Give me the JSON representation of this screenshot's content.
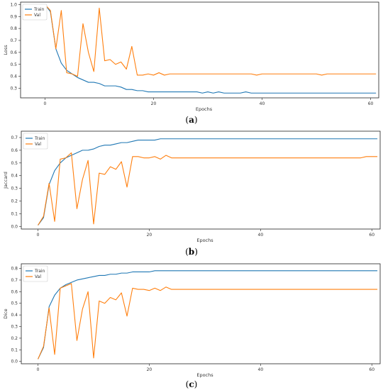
{
  "colors": {
    "train": "#1f77b4",
    "val": "#ff7f0e"
  },
  "chart_data": [
    {
      "type": "line",
      "caption": {
        "open": "(",
        "letter": "a",
        "close": ")"
      },
      "xlabel": "Epochs",
      "ylabel": "Loss",
      "xlim": [
        -4.5,
        61.5
      ],
      "ylim": [
        0.22,
        1.02
      ],
      "xticks": [
        0,
        20,
        40,
        60
      ],
      "yticks": [
        0.3,
        0.4,
        0.5,
        0.6,
        0.7,
        0.8,
        0.9,
        1.0
      ],
      "ytick_labels": [
        "0.3",
        "0.4",
        "0.5",
        "0.6",
        "0.7",
        "0.8",
        "0.9",
        "1.0"
      ],
      "legend": {
        "position": "top-left"
      },
      "series": [
        {
          "name": "Train",
          "color": "#1f77b4",
          "values": [
            1.0,
            0.94,
            0.63,
            0.51,
            0.45,
            0.42,
            0.39,
            0.37,
            0.35,
            0.35,
            0.34,
            0.32,
            0.32,
            0.32,
            0.31,
            0.29,
            0.29,
            0.28,
            0.28,
            0.27,
            0.27,
            0.27,
            0.27,
            0.27,
            0.27,
            0.27,
            0.27,
            0.27,
            0.27,
            0.26,
            0.27,
            0.26,
            0.27,
            0.26,
            0.26,
            0.26,
            0.26,
            0.27,
            0.26,
            0.26,
            0.26,
            0.26,
            0.26,
            0.26,
            0.26,
            0.26,
            0.26,
            0.26,
            0.26,
            0.26,
            0.26,
            0.26,
            0.26,
            0.26,
            0.26,
            0.26,
            0.26,
            0.26,
            0.26,
            0.26,
            0.26,
            0.26
          ]
        },
        {
          "name": "Val",
          "color": "#ff7f0e",
          "values": [
            1.0,
            0.95,
            0.63,
            0.95,
            0.43,
            0.42,
            0.4,
            0.84,
            0.6,
            0.44,
            0.97,
            0.53,
            0.54,
            0.5,
            0.52,
            0.46,
            0.65,
            0.41,
            0.41,
            0.42,
            0.41,
            0.43,
            0.41,
            0.42,
            0.42,
            0.42,
            0.42,
            0.42,
            0.42,
            0.42,
            0.42,
            0.42,
            0.42,
            0.42,
            0.42,
            0.42,
            0.42,
            0.42,
            0.42,
            0.41,
            0.42,
            0.42,
            0.42,
            0.42,
            0.42,
            0.42,
            0.42,
            0.42,
            0.42,
            0.42,
            0.42,
            0.41,
            0.42,
            0.42,
            0.42,
            0.42,
            0.42,
            0.42,
            0.42,
            0.42,
            0.42,
            0.42
          ]
        }
      ]
    },
    {
      "type": "line",
      "caption": {
        "open": "(",
        "letter": "b",
        "close": ")"
      },
      "xlabel": "Epochs",
      "ylabel": "Jaccard",
      "xlim": [
        -3,
        61.5
      ],
      "ylim": [
        -0.02,
        0.75
      ],
      "xticks": [
        0,
        20,
        40,
        60
      ],
      "yticks": [
        0.0,
        0.1,
        0.2,
        0.3,
        0.4,
        0.5,
        0.6,
        0.7
      ],
      "ytick_labels": [
        "0.0",
        "0.1",
        "0.2",
        "0.3",
        "0.4",
        "0.5",
        "0.6",
        "0.7"
      ],
      "legend": {
        "position": "top-left"
      },
      "series": [
        {
          "name": "Train",
          "color": "#1f77b4",
          "values": [
            0.01,
            0.07,
            0.33,
            0.44,
            0.5,
            0.54,
            0.56,
            0.58,
            0.6,
            0.6,
            0.61,
            0.63,
            0.64,
            0.64,
            0.65,
            0.66,
            0.66,
            0.67,
            0.68,
            0.68,
            0.68,
            0.68,
            0.69,
            0.69,
            0.69,
            0.69,
            0.69,
            0.69,
            0.69,
            0.69,
            0.69,
            0.69,
            0.69,
            0.69,
            0.69,
            0.69,
            0.69,
            0.69,
            0.69,
            0.69,
            0.69,
            0.69,
            0.69,
            0.69,
            0.69,
            0.69,
            0.69,
            0.69,
            0.69,
            0.69,
            0.69,
            0.69,
            0.69,
            0.69,
            0.69,
            0.69,
            0.69,
            0.69,
            0.69,
            0.69,
            0.69,
            0.69
          ]
        },
        {
          "name": "Val",
          "color": "#ff7f0e",
          "values": [
            0.01,
            0.08,
            0.34,
            0.04,
            0.53,
            0.54,
            0.58,
            0.14,
            0.37,
            0.52,
            0.02,
            0.42,
            0.41,
            0.47,
            0.45,
            0.51,
            0.31,
            0.55,
            0.55,
            0.54,
            0.54,
            0.55,
            0.53,
            0.56,
            0.54,
            0.54,
            0.54,
            0.54,
            0.54,
            0.54,
            0.54,
            0.54,
            0.54,
            0.54,
            0.54,
            0.54,
            0.54,
            0.54,
            0.54,
            0.54,
            0.54,
            0.54,
            0.54,
            0.54,
            0.54,
            0.54,
            0.54,
            0.54,
            0.54,
            0.54,
            0.54,
            0.54,
            0.54,
            0.54,
            0.54,
            0.54,
            0.54,
            0.54,
            0.54,
            0.55,
            0.55,
            0.55
          ]
        }
      ]
    },
    {
      "type": "line",
      "caption": {
        "open": "(",
        "letter": "c",
        "close": ")"
      },
      "xlabel": "Epochs",
      "ylabel": "Dice",
      "xlim": [
        -3,
        61.5
      ],
      "ylim": [
        -0.02,
        0.84
      ],
      "xticks": [
        0,
        20,
        40,
        60
      ],
      "yticks": [
        0.0,
        0.1,
        0.2,
        0.3,
        0.4,
        0.5,
        0.6,
        0.7,
        0.8
      ],
      "ytick_labels": [
        "0.0",
        "0.1",
        "0.2",
        "0.3",
        "0.4",
        "0.5",
        "0.6",
        "0.7",
        "0.8"
      ],
      "legend": {
        "position": "top-left"
      },
      "series": [
        {
          "name": "Train",
          "color": "#1f77b4",
          "values": [
            0.02,
            0.12,
            0.47,
            0.57,
            0.63,
            0.66,
            0.68,
            0.7,
            0.71,
            0.72,
            0.73,
            0.74,
            0.74,
            0.75,
            0.75,
            0.76,
            0.76,
            0.77,
            0.77,
            0.77,
            0.77,
            0.78,
            0.78,
            0.78,
            0.78,
            0.78,
            0.78,
            0.78,
            0.78,
            0.78,
            0.78,
            0.78,
            0.78,
            0.78,
            0.78,
            0.78,
            0.78,
            0.78,
            0.78,
            0.78,
            0.78,
            0.78,
            0.78,
            0.78,
            0.78,
            0.78,
            0.78,
            0.78,
            0.78,
            0.78,
            0.78,
            0.78,
            0.78,
            0.78,
            0.78,
            0.78,
            0.78,
            0.78,
            0.78,
            0.78,
            0.78,
            0.78
          ]
        },
        {
          "name": "Val",
          "color": "#ff7f0e",
          "values": [
            0.02,
            0.13,
            0.46,
            0.06,
            0.63,
            0.65,
            0.67,
            0.18,
            0.45,
            0.6,
            0.03,
            0.52,
            0.5,
            0.55,
            0.53,
            0.59,
            0.39,
            0.63,
            0.62,
            0.62,
            0.61,
            0.63,
            0.61,
            0.64,
            0.62,
            0.62,
            0.62,
            0.62,
            0.62,
            0.62,
            0.62,
            0.62,
            0.62,
            0.62,
            0.62,
            0.62,
            0.62,
            0.62,
            0.62,
            0.62,
            0.62,
            0.62,
            0.62,
            0.62,
            0.62,
            0.62,
            0.62,
            0.62,
            0.62,
            0.62,
            0.62,
            0.62,
            0.62,
            0.62,
            0.62,
            0.62,
            0.62,
            0.62,
            0.62,
            0.62,
            0.62,
            0.62
          ]
        }
      ]
    }
  ]
}
